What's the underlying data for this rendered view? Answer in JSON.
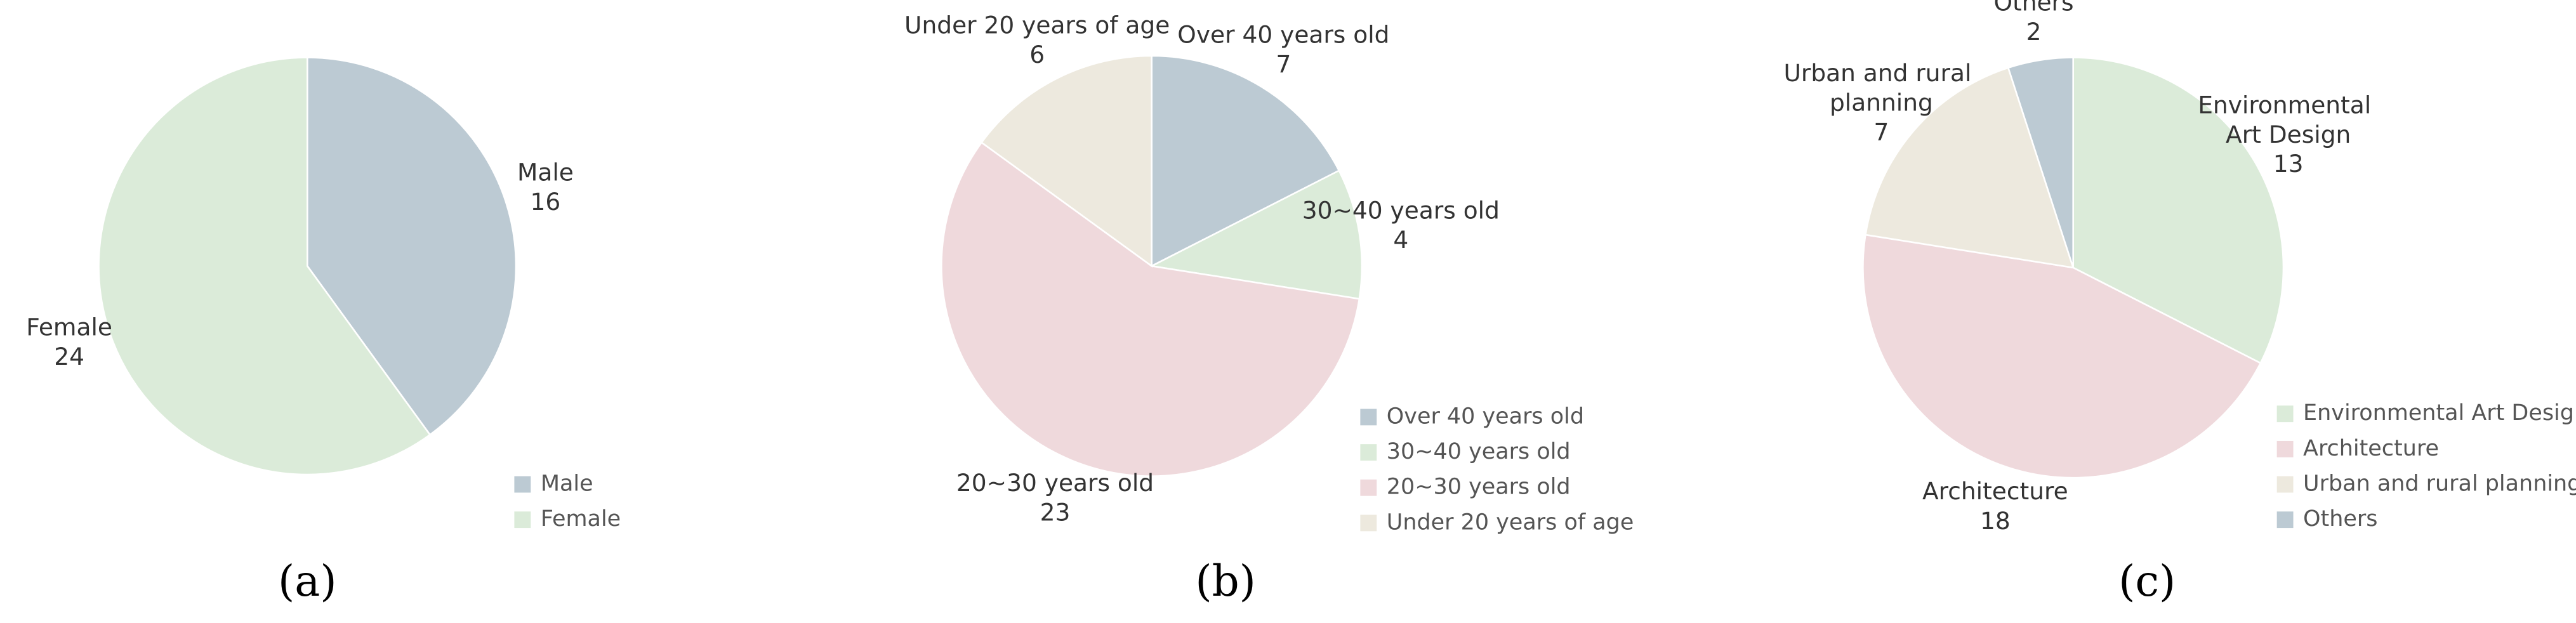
{
  "chart_data": [
    {
      "type": "pie",
      "caption": "(a)",
      "categories": [
        "Male",
        "Female"
      ],
      "values": [
        16,
        24
      ],
      "colors": [
        "#bccad3",
        "#dbebd9"
      ]
    },
    {
      "type": "pie",
      "caption": "(b)",
      "categories": [
        "Over 40 years old",
        "30~40 years old",
        "20~30 years old",
        "Under 20 years of age"
      ],
      "values": [
        7,
        4,
        23,
        6
      ],
      "colors": [
        "#bccad3",
        "#dbebd9",
        "#efd9dc",
        "#ede9de"
      ]
    },
    {
      "type": "pie",
      "caption": "(c)",
      "categories": [
        "Environmental Art Design",
        "Architecture",
        "Urban and rural planning",
        "Others"
      ],
      "values": [
        13,
        18,
        7,
        2
      ],
      "colors": [
        "#dbebd9",
        "#efd9dc",
        "#ede9de",
        "#bccad3"
      ]
    }
  ]
}
